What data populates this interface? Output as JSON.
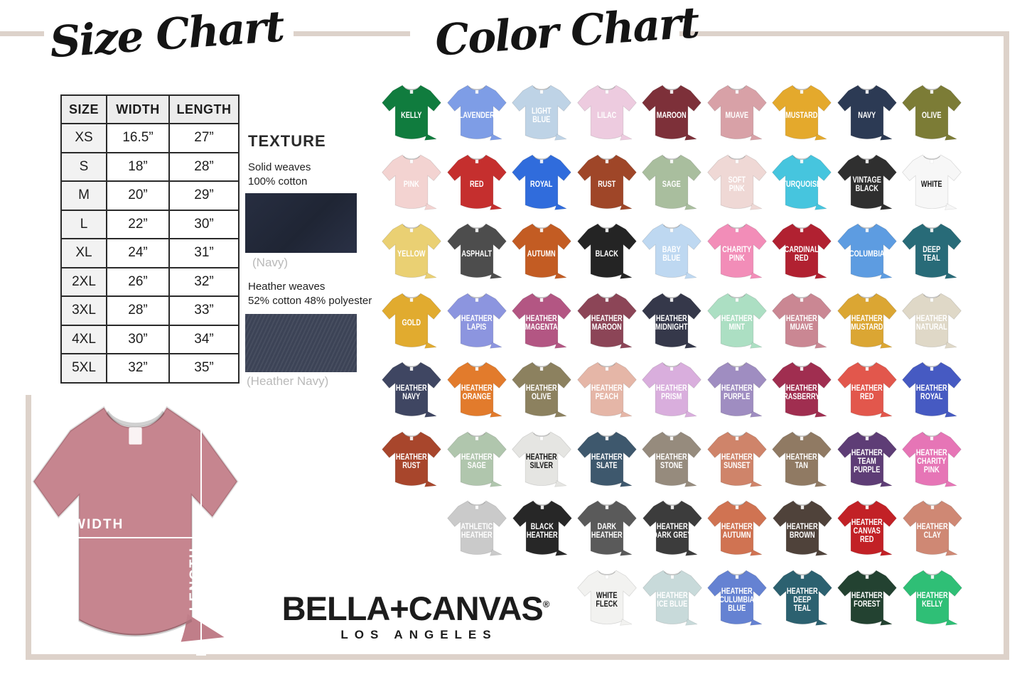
{
  "page": {
    "size_chart_title": "Size Chart",
    "color_chart_title": "Color Chart"
  },
  "size_table": {
    "headers": [
      "SIZE",
      "WIDTH",
      "LENGTH"
    ],
    "rows": [
      [
        "XS",
        "16.5”",
        "27”"
      ],
      [
        "S",
        "18”",
        "28”"
      ],
      [
        "M",
        "20”",
        "29”"
      ],
      [
        "L",
        "22”",
        "30”"
      ],
      [
        "XL",
        "24”",
        "31”"
      ],
      [
        "2XL",
        "26”",
        "32”"
      ],
      [
        "3XL",
        "28”",
        "33”"
      ],
      [
        "4XL",
        "30”",
        "34”"
      ],
      [
        "5XL",
        "32”",
        "35”"
      ]
    ]
  },
  "texture": {
    "heading": "TEXTURE",
    "solid_line1": "Solid weaves",
    "solid_line2": "100% cotton",
    "solid_caption": "(Navy)",
    "solid_color": "#232a3d",
    "heather_line1": "Heather weaves",
    "heather_line2": "52% cotton 48% polyester",
    "heather_caption": "(Heather Navy)",
    "heather_color": "#3c4356"
  },
  "measure": {
    "width_label": "WIDTH",
    "length_label": "LENGTH",
    "shirt_color": "#c6858f"
  },
  "brand": {
    "logo": "BELLA+CANVAS",
    "registered": "®",
    "subtitle": "LOS ANGELES"
  },
  "frame_color": "#ddd2ca",
  "colors": {
    "default_text": "#ffffff",
    "rows": [
      [
        {
          "name": "Kelly",
          "label": "KELLY",
          "hex": "#107c3e"
        },
        {
          "name": "Lavender",
          "label": "LAVENDER",
          "hex": "#7e9de6"
        },
        {
          "name": "Light Blue",
          "label": "LIGHT\nBLUE",
          "hex": "#bed3e6"
        },
        {
          "name": "Lilac",
          "label": "LILAC",
          "hex": "#edcbdf"
        },
        {
          "name": "Maroon",
          "label": "MAROON",
          "hex": "#7d3039"
        },
        {
          "name": "Muave",
          "label": "MUAVE",
          "hex": "#d8a1a7"
        },
        {
          "name": "Mustard",
          "label": "MUSTARD",
          "hex": "#e4a92c"
        },
        {
          "name": "Navy",
          "label": "NAVY",
          "hex": "#2c3a54"
        },
        {
          "name": "Olive",
          "label": "OLIVE",
          "hex": "#7c7c36"
        }
      ],
      [
        {
          "name": "Pink",
          "label": "PINK",
          "hex": "#f3d3d1"
        },
        {
          "name": "Red",
          "label": "RED",
          "hex": "#c52f2e"
        },
        {
          "name": "Royal",
          "label": "ROYAL",
          "hex": "#306cdc"
        },
        {
          "name": "Rust",
          "label": "RUST",
          "hex": "#9f4628"
        },
        {
          "name": "Sage",
          "label": "SAGE",
          "hex": "#a9be9e"
        },
        {
          "name": "Soft Pink",
          "label": "SOFT\nPINK",
          "hex": "#efd8d5"
        },
        {
          "name": "Turquoise",
          "label": "TURQUOISE",
          "hex": "#46c5de"
        },
        {
          "name": "Vintage Black",
          "label": "VINTAGE\nBLACK",
          "hex": "#2f2f2f"
        },
        {
          "name": "White",
          "label": "WHITE",
          "hex": "#f7f7f7",
          "text": "#1a1a1a"
        }
      ],
      [
        {
          "name": "Yellow",
          "label": "YELLOW",
          "hex": "#ead073"
        },
        {
          "name": "Asphalt",
          "label": "ASPHALT",
          "hex": "#4d4d4d"
        },
        {
          "name": "Autumn",
          "label": "AUTUMN",
          "hex": "#c35c23"
        },
        {
          "name": "Black",
          "label": "BLACK",
          "hex": "#242424"
        },
        {
          "name": "Baby Blue",
          "label": "BABY\nBLUE",
          "hex": "#bed8f1"
        },
        {
          "name": "Charity Pink",
          "label": "CHARITY\nPINK",
          "hex": "#f28db8"
        },
        {
          "name": "Cardinal Red",
          "label": "CARDINAL\nRED",
          "hex": "#b12131"
        },
        {
          "name": "Columbia",
          "label": "COLUMBIA",
          "hex": "#5d9ce1"
        },
        {
          "name": "Deep Teal",
          "label": "DEEP\nTEAL",
          "hex": "#286b78"
        }
      ],
      [
        {
          "name": "Gold",
          "label": "GOLD",
          "hex": "#e1ab2f"
        },
        {
          "name": "Heather Lapis",
          "label": "HEATHER\nLAPIS",
          "hex": "#8c95df"
        },
        {
          "name": "Heather Magenta",
          "label": "HEATHER\nMAGENTA",
          "hex": "#b35683"
        },
        {
          "name": "Heather Maroon",
          "label": "HEATHER\nMAROON",
          "hex": "#8c4557"
        },
        {
          "name": "Heather Midnight",
          "label": "HEATHER\nMIDNIGHT",
          "hex": "#35384a"
        },
        {
          "name": "Heather Mint",
          "label": "HEATHER\nMINT",
          "hex": "#acdfc3"
        },
        {
          "name": "Heather Muave",
          "label": "HEATHER\nMUAVE",
          "hex": "#ca8793"
        },
        {
          "name": "Heather Mustard",
          "label": "HEATHER\nMUSTARD",
          "hex": "#dba633"
        },
        {
          "name": "Heather Natural",
          "label": "HEATHER\nNATURAL",
          "hex": "#dfd8c7"
        }
      ],
      [
        {
          "name": "Heather Navy",
          "label": "HEATHER\nNAVY",
          "hex": "#3f4662"
        },
        {
          "name": "Heather Orange",
          "label": "HEATHER\nORANGE",
          "hex": "#e27b2c"
        },
        {
          "name": "Heather Olive",
          "label": "HEATHER\nOLIVE",
          "hex": "#8c815f"
        },
        {
          "name": "Heather Peach",
          "label": "HEATHER\nPEACH",
          "hex": "#e5b6a7"
        },
        {
          "name": "Heather Prism",
          "label": "HEATHER\nPRISM",
          "hex": "#d9aedd"
        },
        {
          "name": "Heather Purple",
          "label": "HEATHER\nPURPLE",
          "hex": "#9f8dc1"
        },
        {
          "name": "Heather Rasberry",
          "label": "HEATHER\nRASBERRY",
          "hex": "#a02e50"
        },
        {
          "name": "Heather Red",
          "label": "HEATHER\nRED",
          "hex": "#e2574c"
        },
        {
          "name": "Heather Royal",
          "label": "HEATHER\nROYAL",
          "hex": "#465ac2"
        }
      ],
      [
        {
          "name": "Heather Rust",
          "label": "HEATHER\nRUST",
          "hex": "#a8462c"
        },
        {
          "name": "Heather Sage",
          "label": "HEATHER\nSAGE",
          "hex": "#b0c6ad"
        },
        {
          "name": "Heather Silver",
          "label": "HEATHER\nSILVER",
          "hex": "#e5e5e2",
          "text": "#1a1a1a"
        },
        {
          "name": "Heather Slate",
          "label": "HEATHER\nSLATE",
          "hex": "#3e586d"
        },
        {
          "name": "Heather Stone",
          "label": "HEATHER\nSTONE",
          "hex": "#968b7d"
        },
        {
          "name": "Heather Sunset",
          "label": "HEATHER\nSUNSET",
          "hex": "#cf846a"
        },
        {
          "name": "Heather Tan",
          "label": "HEATHER\nTAN",
          "hex": "#907a63"
        },
        {
          "name": "Heather Team Purple",
          "label": "HEATHER\nTEAM\nPURPLE",
          "hex": "#5e3d76"
        },
        {
          "name": "Heather Charity Pink",
          "label": "HEATHER\nCHARITY\nPINK",
          "hex": "#e675b6"
        }
      ],
      [
        {
          "name": "Athletic Heather",
          "label": "ATHLETIC\nHEATHER",
          "hex": "#cacaca"
        },
        {
          "name": "Black Heather",
          "label": "BLACK\nHEATHER",
          "hex": "#272727"
        },
        {
          "name": "Dark Heather",
          "label": "DARK\nHEATHER",
          "hex": "#5a5a5a"
        },
        {
          "name": "Heather Dark Grey",
          "label": "HEATHER\nDARK GREY",
          "hex": "#3c3c3c"
        },
        {
          "name": "Heather Autumn",
          "label": "HEATHER\nAUTUMN",
          "hex": "#d07352"
        },
        {
          "name": "Heather Brown",
          "label": "HEATHER\nBROWN",
          "hex": "#4f423a"
        },
        {
          "name": "Heather Canvas Red",
          "label": "HEATHER\nCANVAS\nRED",
          "hex": "#c22126"
        },
        {
          "name": "Heather Clay",
          "label": "HEATHER\nCLAY",
          "hex": "#cf8874"
        }
      ],
      [
        {
          "name": "White Fleck",
          "label": "WHITE\nFLECK",
          "hex": "#f2f2f0",
          "text": "#1a1a1a"
        },
        {
          "name": "Heather Ice Blue",
          "label": "HEATHER\nICE BLUE",
          "hex": "#c8dada"
        },
        {
          "name": "Heather Culumbia Blue",
          "label": "HEATHER\nCULUMBIA\nBLUE",
          "hex": "#6582d2"
        },
        {
          "name": "Heather Deep Teal",
          "label": "HEATHER\nDEEP\nTEAL",
          "hex": "#2c6170"
        },
        {
          "name": "Heather Forest",
          "label": "HEATHER\nFOREST",
          "hex": "#234231"
        },
        {
          "name": "Heather Kelly",
          "label": "HEATHER\nKELLY",
          "hex": "#2fbf76"
        }
      ]
    ]
  }
}
